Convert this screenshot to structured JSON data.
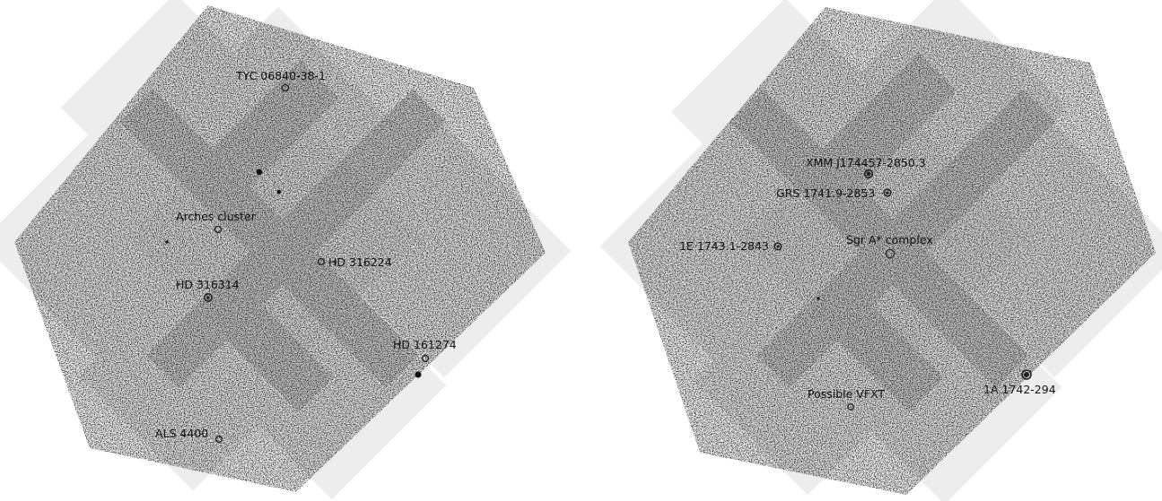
{
  "left_panel": {
    "sources": [
      {
        "id": "tyc",
        "label": "TYC 06840-38-1"
      },
      {
        "id": "arches",
        "label": "Arches cluster"
      },
      {
        "id": "hd316224",
        "label": "HD 316224"
      },
      {
        "id": "hd316314",
        "label": "HD 316314"
      },
      {
        "id": "hd161274",
        "label": "HD 161274"
      },
      {
        "id": "als4400",
        "label": "ALS 4400"
      }
    ]
  },
  "right_panel": {
    "sources": [
      {
        "id": "xmm",
        "label": "XMM J174457-2850.3"
      },
      {
        "id": "grs",
        "label": "GRS 1741.9-2853"
      },
      {
        "id": "1e",
        "label": "1E 1743.1-2843"
      },
      {
        "id": "sgra",
        "label": "Sgr A* complex"
      },
      {
        "id": "1a",
        "label": "1A 1742-294"
      },
      {
        "id": "vfxt",
        "label": "Possible VFXT"
      }
    ]
  },
  "colors": {
    "background": "#ffffff",
    "tile": "#e9e9e9",
    "overlap": "#c4c4c4",
    "marker": "#222222"
  }
}
